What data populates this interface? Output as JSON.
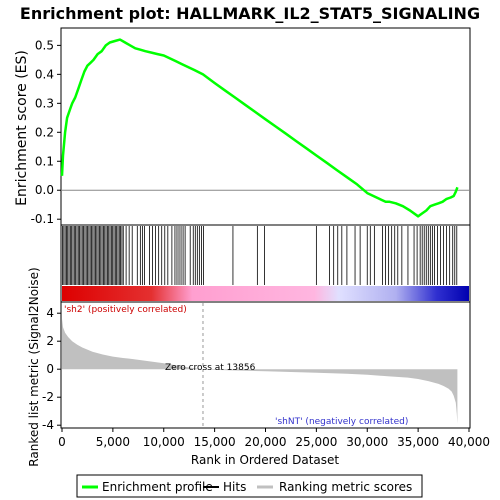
{
  "chart_data": {
    "type": "line",
    "title": "Enrichment plot: HALLMARK_IL2_STAT5_SIGNALING",
    "xlabel": "Rank in Ordered Dataset",
    "ylabel_top": "Enrichment score (ES)",
    "ylabel_bottom": "Ranked list metric (Signal2Noise)",
    "xlim": [
      0,
      40000
    ],
    "x_ticks": [
      "0",
      "5,000",
      "10,000",
      "15,000",
      "20,000",
      "25,000",
      "30,000",
      "35,000",
      "40,000"
    ],
    "x_tick_values": [
      0,
      5000,
      10000,
      15000,
      20000,
      25000,
      30000,
      35000,
      40000
    ],
    "es_ylim": [
      -0.12,
      0.56
    ],
    "es_ticks": [
      "-0.1",
      "0.0",
      "0.1",
      "0.2",
      "0.3",
      "0.4",
      "0.5"
    ],
    "es_tick_values": [
      -0.1,
      0.0,
      0.1,
      0.2,
      0.3,
      0.4,
      0.5
    ],
    "metric_ylim": [
      -4.2,
      4.8
    ],
    "metric_ticks": [
      "-4",
      "-2",
      "0",
      "2",
      "4"
    ],
    "metric_tick_values": [
      -4,
      -2,
      0,
      2,
      4
    ],
    "total_genes": 38860,
    "enrichment_profile": {
      "name": "Enrichment profile",
      "color": "#00ff00",
      "x": [
        0,
        100,
        300,
        500,
        800,
        1000,
        1300,
        1600,
        1900,
        2200,
        2500,
        2800,
        3100,
        3500,
        3900,
        4300,
        4700,
        5200,
        5700,
        6200,
        6700,
        7200,
        7700,
        8200,
        8800,
        9400,
        10000,
        10600,
        11200,
        11800,
        12400,
        13000,
        13856,
        15000,
        16000,
        17000,
        18000,
        19000,
        20000,
        21000,
        22000,
        23000,
        24000,
        25000,
        26000,
        27000,
        28000,
        29000,
        30000,
        30600,
        31200,
        31800,
        32200,
        32800,
        33500,
        34200,
        35000,
        35400,
        35800,
        36200,
        36600,
        37000,
        37400,
        37800,
        38200,
        38500,
        38700,
        38860
      ],
      "y": [
        0.05,
        0.12,
        0.2,
        0.25,
        0.28,
        0.3,
        0.32,
        0.35,
        0.38,
        0.41,
        0.43,
        0.44,
        0.45,
        0.47,
        0.48,
        0.5,
        0.51,
        0.515,
        0.52,
        0.51,
        0.5,
        0.49,
        0.485,
        0.48,
        0.475,
        0.47,
        0.465,
        0.455,
        0.445,
        0.435,
        0.425,
        0.415,
        0.4,
        0.37,
        0.345,
        0.32,
        0.295,
        0.27,
        0.245,
        0.22,
        0.195,
        0.17,
        0.145,
        0.12,
        0.095,
        0.07,
        0.045,
        0.02,
        -0.01,
        -0.02,
        -0.03,
        -0.04,
        -0.04,
        -0.045,
        -0.055,
        -0.07,
        -0.09,
        -0.08,
        -0.07,
        -0.055,
        -0.05,
        -0.045,
        -0.04,
        -0.03,
        -0.025,
        -0.02,
        -0.005,
        0.01
      ]
    },
    "hits": {
      "name": "Hits",
      "color": "#000000",
      "positions": [
        50,
        180,
        310,
        440,
        560,
        690,
        820,
        950,
        1080,
        1210,
        1340,
        1470,
        1600,
        1730,
        1860,
        1990,
        2120,
        2250,
        2380,
        2510,
        2640,
        2770,
        2900,
        3030,
        3160,
        3290,
        3420,
        3550,
        3680,
        3810,
        3940,
        4070,
        4200,
        4330,
        4460,
        4590,
        4720,
        4850,
        4980,
        5110,
        5240,
        5370,
        5500,
        5630,
        5760,
        5890,
        6020,
        6300,
        6600,
        6900,
        7400,
        7700,
        7900,
        8100,
        8600,
        8900,
        9200,
        9500,
        9800,
        10100,
        10400,
        10800,
        11100,
        11300,
        11500,
        11700,
        11900,
        12100,
        12600,
        12900,
        13100,
        13300,
        13500,
        13700,
        13900,
        16800,
        19200,
        19900,
        25000,
        26300,
        26700,
        27100,
        27500,
        28000,
        28800,
        29300,
        30000,
        30300,
        30700,
        31500,
        31800,
        32100,
        32400,
        32700,
        33000,
        33400,
        34000,
        34600,
        34900,
        35200,
        35400,
        35600,
        35800,
        36000,
        36200,
        36400,
        36600,
        36900,
        37200,
        37500,
        37800,
        38100,
        38400,
        38600,
        38800
      ]
    },
    "metric": {
      "name": "Ranking metric scores",
      "color": "#c0c0c0",
      "x": [
        0,
        100,
        300,
        600,
        1000,
        1500,
        2000,
        2500,
        3000,
        3500,
        4000,
        5000,
        6000,
        7000,
        8000,
        9000,
        10000,
        11000,
        12000,
        13000,
        13856,
        15000,
        20000,
        25000,
        28000,
        30000,
        32000,
        34000,
        35000,
        36000,
        36500,
        37000,
        37500,
        38000,
        38300,
        38500,
        38700,
        38800,
        38860
      ],
      "y": [
        3.6,
        3.0,
        2.6,
        2.3,
        2.0,
        1.75,
        1.55,
        1.4,
        1.25,
        1.15,
        1.05,
        0.9,
        0.8,
        0.72,
        0.62,
        0.52,
        0.42,
        0.3,
        0.18,
        0.08,
        0.0,
        -0.05,
        -0.15,
        -0.25,
        -0.32,
        -0.4,
        -0.5,
        -0.6,
        -0.7,
        -0.85,
        -0.95,
        -1.05,
        -1.2,
        -1.4,
        -1.6,
        -1.9,
        -2.4,
        -3.2,
        -3.9
      ]
    },
    "zero_cross": 13856,
    "zero_cross_label": "Zero cross at 13856",
    "pos_label": "'sh2' (positively correlated)",
    "neg_label": "'shNT' (negatively correlated)",
    "colors": {
      "pos_strong": "#dd0000",
      "pos_light": "#ffb6e0",
      "neg_light": "#d8d8ff",
      "neg_strong": "#0000cc",
      "pos_text": "#cc0000",
      "neg_text": "#3333cc"
    },
    "legend": {
      "items": [
        "Enrichment profile",
        "Hits",
        "Ranking metric scores"
      ],
      "placement": "bottom"
    }
  }
}
